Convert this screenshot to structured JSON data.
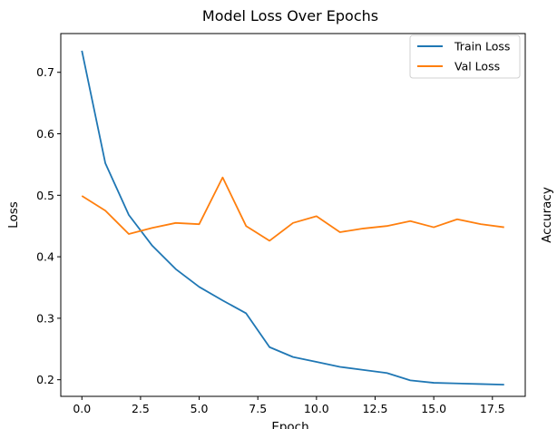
{
  "chart_data": {
    "type": "line",
    "title": "Model Loss Over Epochs",
    "xlabel": "Epoch",
    "ylabel": "Loss",
    "secondary_ylabel": "Accuracy",
    "xlim": [
      -0.9,
      18.9
    ],
    "ylim": [
      0.173,
      0.763
    ],
    "xticks": [
      0.0,
      2.5,
      5.0,
      7.5,
      10.0,
      12.5,
      15.0,
      17.5
    ],
    "xtick_labels": [
      "0.0",
      "2.5",
      "5.0",
      "7.5",
      "10.0",
      "12.5",
      "15.0",
      "17.5"
    ],
    "yticks": [
      0.2,
      0.3,
      0.4,
      0.5,
      0.6,
      0.7
    ],
    "ytick_labels": [
      "0.2",
      "0.3",
      "0.4",
      "0.5",
      "0.6",
      "0.7"
    ],
    "grid": false,
    "legend_position": "top-right",
    "x": [
      0,
      1,
      2,
      3,
      4,
      5,
      6,
      7,
      8,
      9,
      10,
      11,
      12,
      13,
      14,
      15,
      16,
      17,
      18
    ],
    "series": [
      {
        "name": "Train Loss",
        "color": "#1f77b4",
        "values": [
          0.735,
          0.552,
          0.468,
          0.418,
          0.38,
          0.351,
          0.329,
          0.308,
          0.253,
          0.237,
          0.229,
          0.221,
          0.216,
          0.211,
          0.199,
          0.195,
          0.194,
          0.193,
          0.192
        ]
      },
      {
        "name": "Val Loss",
        "color": "#ff7f0e",
        "values": [
          0.499,
          0.475,
          0.437,
          0.447,
          0.455,
          0.453,
          0.529,
          0.45,
          0.426,
          0.455,
          0.466,
          0.44,
          0.446,
          0.45,
          0.458,
          0.448,
          0.461,
          0.453,
          0.448
        ]
      }
    ]
  }
}
